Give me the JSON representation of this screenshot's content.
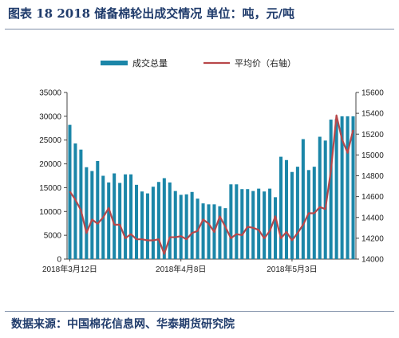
{
  "title": "图表 18 2018 储备棉轮出成交情况 单位：吨，元/吨",
  "source": "数据来源：中国棉花信息网、华泰期货研究院",
  "chart_data": {
    "type": "bar",
    "title": "",
    "legend": {
      "placement": "top",
      "bar_label": "成交总量",
      "line_label": "平均价（右轴）"
    },
    "left_axis": {
      "ylim": [
        0,
        35000
      ],
      "ticks": [
        0,
        5000,
        10000,
        15000,
        20000,
        25000,
        30000,
        35000
      ]
    },
    "right_axis": {
      "ylim": [
        14000,
        15600
      ],
      "ticks": [
        14000,
        14200,
        14400,
        14600,
        14800,
        15000,
        15200,
        15400,
        15600
      ]
    },
    "x_tick_labels": [
      {
        "index": 0,
        "label": "2018年3月12日"
      },
      {
        "index": 20,
        "label": "2018年4月8日"
      },
      {
        "index": 40,
        "label": "2018年5月3日"
      }
    ],
    "series": [
      {
        "name": "成交总量",
        "type": "bar",
        "axis": "left",
        "color": "#1b86a8",
        "values": [
          28200,
          24300,
          23000,
          19300,
          18500,
          20600,
          17500,
          16100,
          18000,
          16000,
          17800,
          17800,
          15600,
          14200,
          13800,
          15200,
          16200,
          17000,
          16100,
          14300,
          13500,
          13600,
          14100,
          12700,
          11700,
          11500,
          11500,
          11100,
          10700,
          15700,
          15700,
          14700,
          14700,
          14300,
          14800,
          14200,
          14800,
          13000,
          21500,
          20800,
          18300,
          19400,
          25200,
          18700,
          19400,
          25700,
          24900,
          29300,
          29400,
          30000,
          30000,
          30000
        ]
      },
      {
        "name": "平均价（右轴）",
        "type": "line",
        "axis": "right",
        "color": "#b8474a",
        "values": [
          14650,
          14570,
          14470,
          14250,
          14380,
          14340,
          14400,
          14490,
          14330,
          14330,
          14200,
          14240,
          14190,
          14190,
          14180,
          14180,
          14190,
          14050,
          14210,
          14210,
          14220,
          14190,
          14250,
          14270,
          14380,
          14340,
          14260,
          14410,
          14310,
          14200,
          14240,
          14230,
          14310,
          14300,
          14280,
          14200,
          14270,
          14410,
          14200,
          14260,
          14180,
          14250,
          14330,
          14440,
          14440,
          14500,
          14480,
          14850,
          15380,
          15150,
          15020,
          15240
        ]
      }
    ]
  }
}
